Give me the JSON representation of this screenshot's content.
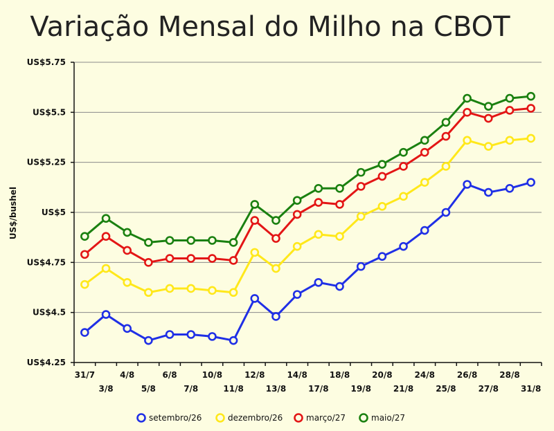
{
  "chart_data": {
    "type": "line",
    "title": "Variação Mensal do Milho na CBOT",
    "ylabel": "US$/bushel",
    "xlabel": "",
    "ylim": [
      4.25,
      5.75
    ],
    "yticks": [
      {
        "value": 4.25,
        "label": "US$4.25"
      },
      {
        "value": 4.5,
        "label": "US$4.5"
      },
      {
        "value": 4.75,
        "label": "US$4.75"
      },
      {
        "value": 5.0,
        "label": "US$5"
      },
      {
        "value": 5.25,
        "label": "US$5.25"
      },
      {
        "value": 5.5,
        "label": "US$5.5"
      },
      {
        "value": 5.75,
        "label": "US$5.75"
      }
    ],
    "categories": [
      "31/7",
      "3/8",
      "4/8",
      "5/8",
      "6/8",
      "7/8",
      "10/8",
      "11/8",
      "12/8",
      "13/8",
      "14/8",
      "17/8",
      "18/8",
      "19/8",
      "20/8",
      "21/8",
      "24/8",
      "25/8",
      "26/8",
      "27/8",
      "28/8",
      "31/8"
    ],
    "grid": true,
    "legend_position": "bottom",
    "series": [
      {
        "name": "setembro/26",
        "color": "#1f2fe6",
        "values": [
          4.4,
          4.49,
          4.42,
          4.36,
          4.39,
          4.39,
          4.38,
          4.36,
          4.57,
          4.48,
          4.59,
          4.65,
          4.63,
          4.73,
          4.78,
          4.83,
          4.91,
          5.0,
          5.14,
          5.1,
          5.12,
          5.15
        ]
      },
      {
        "name": "dezembro/26",
        "color": "#ffe81a",
        "values": [
          4.64,
          4.72,
          4.65,
          4.6,
          4.62,
          4.62,
          4.61,
          4.6,
          4.8,
          4.72,
          4.83,
          4.89,
          4.88,
          4.98,
          5.03,
          5.08,
          5.15,
          5.23,
          5.36,
          5.33,
          5.36,
          5.37
        ]
      },
      {
        "name": "março/27",
        "color": "#e31515",
        "values": [
          4.79,
          4.88,
          4.81,
          4.75,
          4.77,
          4.77,
          4.77,
          4.76,
          4.96,
          4.87,
          4.99,
          5.05,
          5.04,
          5.13,
          5.18,
          5.23,
          5.3,
          5.38,
          5.5,
          5.47,
          5.51,
          5.52
        ]
      },
      {
        "name": "maio/27",
        "color": "#1a8010",
        "values": [
          4.88,
          4.97,
          4.9,
          4.85,
          4.86,
          4.86,
          4.86,
          4.85,
          5.04,
          4.96,
          5.06,
          5.12,
          5.12,
          5.2,
          5.24,
          5.3,
          5.36,
          5.45,
          5.57,
          5.53,
          5.57,
          5.58
        ]
      }
    ]
  }
}
